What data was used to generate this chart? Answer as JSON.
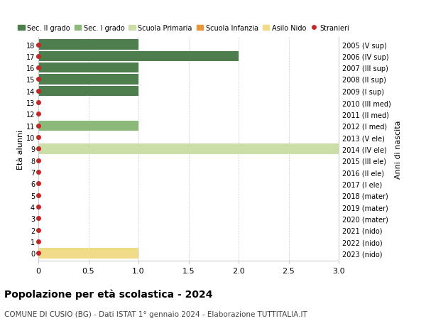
{
  "ages": [
    18,
    17,
    16,
    15,
    14,
    13,
    12,
    11,
    10,
    9,
    8,
    7,
    6,
    5,
    4,
    3,
    2,
    1,
    0
  ],
  "years": [
    "2005 (V sup)",
    "2006 (IV sup)",
    "2007 (III sup)",
    "2008 (II sup)",
    "2009 (I sup)",
    "2010 (III med)",
    "2011 (II med)",
    "2012 (I med)",
    "2013 (V ele)",
    "2014 (IV ele)",
    "2015 (III ele)",
    "2016 (II ele)",
    "2017 (I ele)",
    "2018 (mater)",
    "2019 (mater)",
    "2020 (mater)",
    "2021 (nido)",
    "2022 (nido)",
    "2023 (nido)"
  ],
  "bar_data": [
    {
      "age": 18,
      "value": 1.0,
      "cat": "sec_II_grado"
    },
    {
      "age": 17,
      "value": 2.0,
      "cat": "sec_II_grado"
    },
    {
      "age": 16,
      "value": 1.0,
      "cat": "sec_II_grado"
    },
    {
      "age": 15,
      "value": 1.0,
      "cat": "sec_II_grado"
    },
    {
      "age": 14,
      "value": 1.0,
      "cat": "sec_II_grado"
    },
    {
      "age": 11,
      "value": 1.0,
      "cat": "sec_I_grado"
    },
    {
      "age": 9,
      "value": 3.0,
      "cat": "scuola_primaria"
    },
    {
      "age": 0,
      "value": 1.0,
      "cat": "asilo_nido"
    }
  ],
  "colors": {
    "sec_II_grado": "#4e7d4e",
    "sec_I_grado": "#8cb87a",
    "scuola_primaria": "#ccdea8",
    "scuola_infanzia": "#e8963c",
    "asilo_nido": "#f0dc88",
    "stranieri": "#c0292a",
    "grid": "#cccccc"
  },
  "legend_labels": [
    "Sec. II grado",
    "Sec. I grado",
    "Scuola Primaria",
    "Scuola Infanzia",
    "Asilo Nido",
    "Stranieri"
  ],
  "ylabel_left": "Età alunni",
  "ylabel_right": "Anni di nascita",
  "xticks": [
    0,
    0.5,
    1.0,
    1.5,
    2.0,
    2.5,
    3.0
  ],
  "xtick_labels": [
    "0",
    "0.5",
    "1.0",
    "1.5",
    "2.0",
    "2.5",
    "3.0"
  ],
  "title": "Popolazione per età scolastica - 2024",
  "subtitle": "COMUNE DI CUSIO (BG) - Dati ISTAT 1° gennaio 2024 - Elaborazione TUTTITALIA.IT",
  "bar_height": 0.88,
  "markersize": 4.0
}
